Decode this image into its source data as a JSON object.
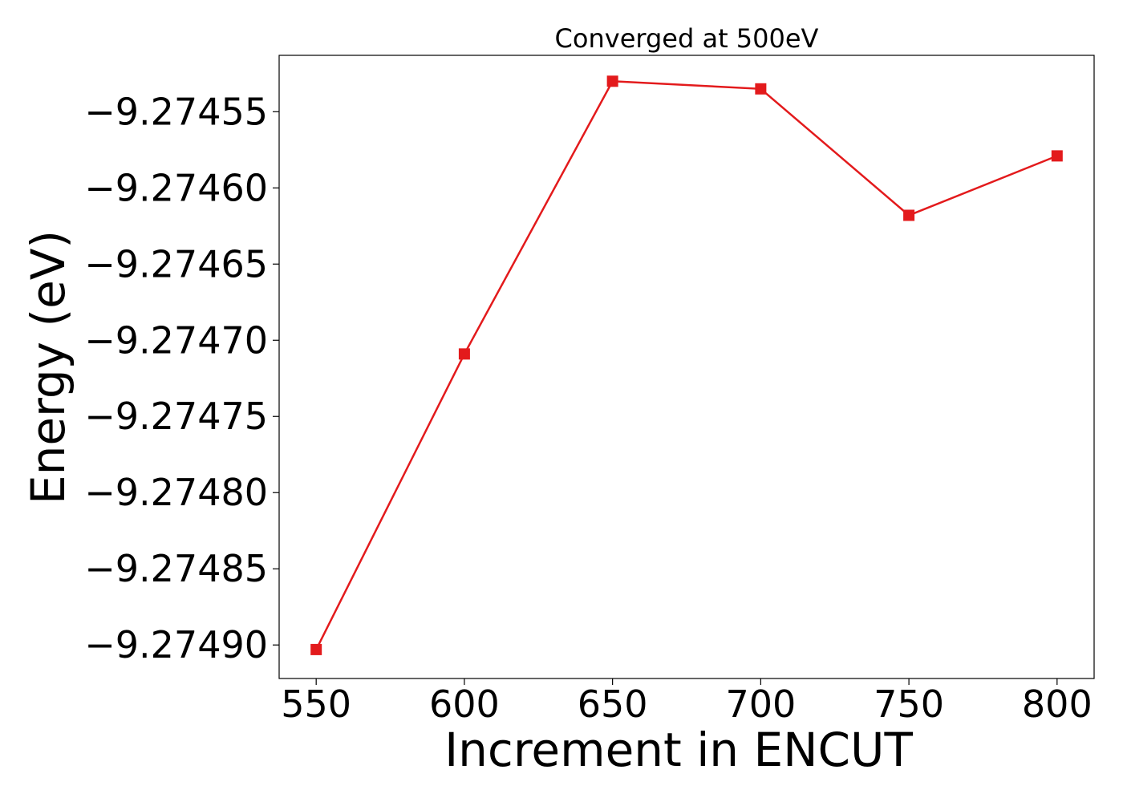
{
  "chart_data": {
    "type": "line",
    "title": "Converged at 500eV",
    "xlabel": "Increment in ENCUT",
    "ylabel": "Energy (eV)",
    "x": [
      550,
      600,
      650,
      700,
      750,
      800
    ],
    "series": [
      {
        "color": "#e31a1c",
        "marker": "square",
        "y": [
          -9.274903,
          -9.274709,
          -9.27453,
          -9.274535,
          -9.274618,
          -9.274579
        ]
      }
    ],
    "xticks": [
      550,
      600,
      650,
      700,
      750,
      800
    ],
    "xtick_labels": [
      "550",
      "600",
      "650",
      "700",
      "750",
      "800"
    ],
    "yticks": [
      -9.27455,
      -9.2746,
      -9.27465,
      -9.2747,
      -9.27475,
      -9.2748,
      -9.27485,
      -9.2749
    ],
    "ytick_labels": [
      "−9.27455",
      "−9.27460",
      "−9.27465",
      "−9.27470",
      "−9.27475",
      "−9.27480",
      "−9.27485",
      "−9.27490"
    ],
    "xlim": [
      537.5,
      812.5
    ],
    "ylim": [
      -9.274922,
      -9.274513
    ],
    "grid": false,
    "legend": "none"
  }
}
